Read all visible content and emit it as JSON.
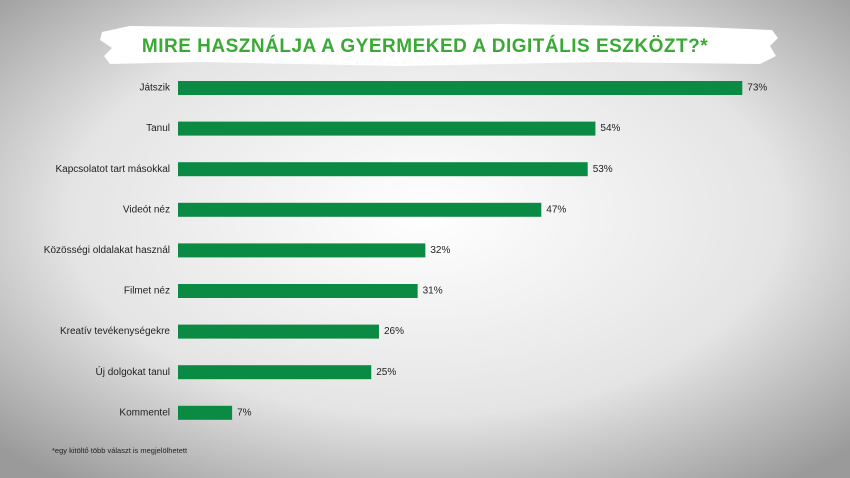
{
  "chart_data": {
    "type": "bar",
    "orientation": "horizontal",
    "title": "MIRE HASZNÁLJA A GYERMEKED A DIGITÁLIS ESZKÖZT?*",
    "categories": [
      "Játszik",
      "Tanul",
      "Kapcsolatot tart másokkal",
      "Videót néz",
      "Közösségi oldalakat használ",
      "Filmet néz",
      "Kreatív tevékenységekre",
      "Új dolgokat tanul",
      "Kommentel"
    ],
    "values": [
      73,
      54,
      53,
      47,
      32,
      31,
      26,
      25,
      7
    ],
    "value_labels": [
      "73%",
      "54%",
      "53%",
      "47%",
      "32%",
      "31%",
      "26%",
      "25%",
      "7%"
    ],
    "color": "#0b8a44",
    "footnote": "*egy kitöltő több választ is megjelölhetett"
  }
}
